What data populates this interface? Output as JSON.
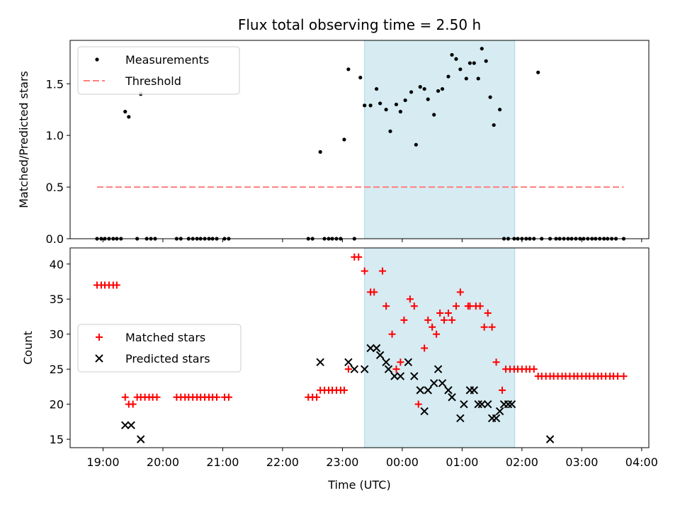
{
  "chart_data": [
    {
      "type": "scatter",
      "title": "Flux total observing time = 2.50 h",
      "xlabel": "",
      "ylabel": "Matched/Predicted stars",
      "ylim": [
        0,
        1.92
      ],
      "yticks": [
        0.0,
        0.5,
        1.0,
        1.5
      ],
      "ytick_labels": [
        "0.0",
        "0.5",
        "1.0",
        "1.5"
      ],
      "xlim": [
        18.45,
        28.12
      ],
      "shaded_region": {
        "x0": 23.37,
        "x1": 25.88,
        "color": "#add8e6"
      },
      "threshold": {
        "name": "Threshold",
        "value": 0.5,
        "x0": 18.9,
        "x1": 27.7,
        "color": "#ff7f7f"
      },
      "legend": {
        "position": "top-left",
        "entries": [
          "Measurements",
          "Threshold"
        ]
      },
      "series": [
        {
          "name": "Measurements",
          "color": "#000000",
          "x": [
            18.9,
            18.97,
            19.03,
            19.1,
            19.17,
            19.23,
            19.3,
            19.37,
            19.43,
            19.57,
            19.63,
            19.73,
            19.8,
            19.87,
            20.23,
            20.3,
            20.43,
            20.5,
            20.57,
            20.63,
            20.7,
            20.77,
            20.83,
            20.9,
            21.03,
            21.1,
            22.43,
            22.5,
            22.63,
            22.7,
            22.77,
            22.83,
            22.9,
            22.97,
            23.03,
            23.1,
            23.2,
            23.3,
            23.37,
            23.47,
            23.57,
            23.63,
            23.73,
            23.8,
            23.9,
            23.97,
            24.05,
            24.15,
            24.23,
            24.3,
            24.37,
            24.43,
            24.53,
            24.6,
            24.67,
            24.77,
            24.83,
            24.9,
            24.97,
            25.07,
            25.13,
            25.2,
            25.27,
            25.33,
            25.4,
            25.47,
            25.53,
            25.63,
            25.7,
            25.77,
            25.87,
            25.93,
            26.0,
            26.07,
            26.13,
            26.2,
            26.27,
            26.33,
            26.47,
            26.57,
            26.63,
            26.7,
            26.77,
            26.83,
            26.9,
            26.97,
            27.03,
            27.1,
            27.17,
            27.23,
            27.3,
            27.37,
            27.43,
            27.5,
            27.57,
            27.7
          ],
          "y": [
            0,
            0,
            0,
            0,
            0,
            0,
            0,
            1.23,
            1.18,
            0,
            1.4,
            0,
            0,
            0,
            0,
            0,
            0,
            0,
            0,
            0,
            0,
            0,
            0,
            0,
            0,
            0,
            0,
            0,
            0.84,
            0,
            0,
            0,
            0,
            0,
            0.96,
            1.64,
            0,
            1.56,
            1.29,
            1.29,
            1.45,
            1.31,
            1.25,
            1.04,
            1.3,
            1.23,
            1.34,
            1.42,
            0.91,
            1.47,
            1.45,
            1.35,
            1.2,
            1.43,
            1.45,
            1.57,
            1.78,
            1.74,
            1.64,
            1.55,
            1.7,
            1.7,
            1.55,
            1.84,
            1.72,
            1.37,
            1.1,
            1.25,
            0,
            0,
            0,
            0,
            0,
            0,
            0,
            0,
            1.61,
            0,
            0,
            0,
            0,
            0,
            0,
            0,
            0,
            0,
            0,
            0,
            0,
            0,
            0,
            0,
            0,
            0,
            0,
            0
          ]
        }
      ]
    },
    {
      "type": "scatter",
      "title": "",
      "xlabel": "Time (UTC)",
      "ylabel": "Count",
      "ylim": [
        13.8,
        42.3
      ],
      "yticks": [
        15,
        20,
        25,
        30,
        35,
        40
      ],
      "ytick_labels": [
        "15",
        "20",
        "25",
        "30",
        "35",
        "40"
      ],
      "xlim": [
        18.45,
        28.12
      ],
      "xticks": [
        19,
        20,
        21,
        22,
        23,
        24,
        25,
        26,
        27,
        28
      ],
      "xtick_labels": [
        "19:00",
        "20:00",
        "21:00",
        "22:00",
        "23:00",
        "00:00",
        "01:00",
        "02:00",
        "03:00",
        "04:00"
      ],
      "shaded_region": {
        "x0": 23.37,
        "x1": 25.88,
        "color": "#add8e6"
      },
      "legend": {
        "position": "center-left",
        "entries": [
          "Matched stars",
          "Predicted stars"
        ]
      },
      "series": [
        {
          "name": "Matched stars",
          "color": "#ff0000",
          "marker": "plus",
          "x": [
            18.9,
            18.97,
            19.03,
            19.1,
            19.17,
            19.23,
            19.37,
            19.43,
            19.5,
            19.57,
            19.63,
            19.7,
            19.77,
            19.83,
            19.9,
            20.23,
            20.3,
            20.37,
            20.43,
            20.5,
            20.57,
            20.63,
            20.7,
            20.77,
            20.83,
            20.9,
            21.03,
            21.1,
            22.43,
            22.5,
            22.57,
            22.63,
            22.7,
            22.77,
            22.83,
            22.9,
            22.97,
            23.03,
            23.1,
            23.2,
            23.27,
            23.37,
            23.47,
            23.53,
            23.67,
            23.73,
            23.83,
            23.9,
            23.97,
            24.03,
            24.13,
            24.2,
            24.27,
            24.37,
            24.43,
            24.5,
            24.57,
            24.63,
            24.7,
            24.77,
            24.83,
            24.9,
            24.97,
            25.1,
            25.13,
            25.23,
            25.3,
            25.37,
            25.43,
            25.5,
            25.57,
            25.67,
            25.73,
            25.8,
            25.87,
            25.93,
            26.0,
            26.07,
            26.13,
            26.2,
            26.27,
            26.33,
            26.4,
            26.47,
            26.53,
            26.6,
            26.67,
            26.73,
            26.8,
            26.87,
            26.93,
            27.0,
            27.07,
            27.13,
            27.2,
            27.27,
            27.33,
            27.4,
            27.47,
            27.53,
            27.6,
            27.7
          ],
          "y": [
            37,
            37,
            37,
            37,
            37,
            37,
            21,
            20,
            20,
            21,
            21,
            21,
            21,
            21,
            21,
            21,
            21,
            21,
            21,
            21,
            21,
            21,
            21,
            21,
            21,
            21,
            21,
            21,
            21,
            21,
            21,
            22,
            22,
            22,
            22,
            22,
            22,
            22,
            25,
            41,
            41,
            39,
            36,
            36,
            39,
            34,
            30,
            25,
            26,
            32,
            35,
            34,
            20,
            28,
            32,
            31,
            30,
            33,
            32,
            33,
            32,
            34,
            36,
            34,
            34,
            34,
            34,
            31,
            33,
            31,
            26,
            22,
            25,
            25,
            25,
            25,
            25,
            25,
            25,
            25,
            24,
            24,
            24,
            24,
            24,
            24,
            24,
            24,
            24,
            24,
            24,
            24,
            24,
            24,
            24,
            24,
            24,
            24,
            24,
            24,
            24,
            24
          ]
        },
        {
          "name": "Predicted stars",
          "color": "#000000",
          "marker": "x",
          "x": [
            19.37,
            19.47,
            19.63,
            22.63,
            23.1,
            23.2,
            23.37,
            23.47,
            23.57,
            23.63,
            23.73,
            23.77,
            23.87,
            23.97,
            24.1,
            24.2,
            24.3,
            24.37,
            24.43,
            24.53,
            24.6,
            24.67,
            24.77,
            24.83,
            24.97,
            25.03,
            25.13,
            25.2,
            25.27,
            25.33,
            25.43,
            25.5,
            25.57,
            25.63,
            25.7,
            25.77,
            25.83,
            26.47
          ],
          "y": [
            17,
            17,
            15,
            26,
            26,
            25,
            25,
            28,
            28,
            27,
            26,
            25,
            24,
            24,
            26,
            24,
            22,
            19,
            22,
            23,
            25,
            23,
            22,
            21,
            18,
            20,
            22,
            22,
            20,
            20,
            20,
            18,
            18,
            19,
            20,
            20,
            20,
            15
          ]
        }
      ]
    }
  ]
}
